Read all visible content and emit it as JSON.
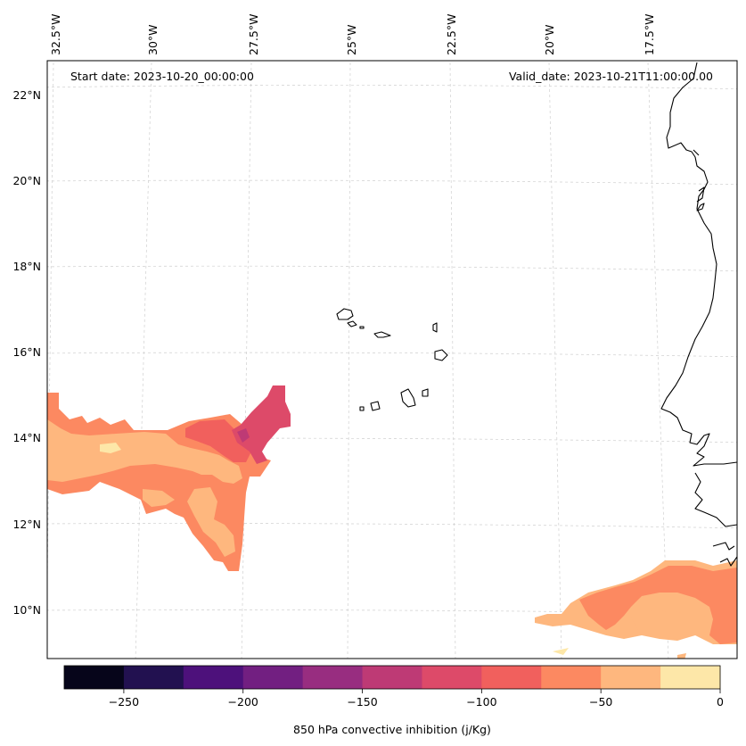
{
  "map": {
    "start_label": "Start date: 2023-10-20_00:00:00",
    "valid_label": "Valid_date: 2023-10-21T11:00:00.00",
    "lon_labels": [
      "32.5°W",
      "30°W",
      "27.5°W",
      "25°W",
      "22.5°W",
      "20°W",
      "17.5°W"
    ],
    "lat_labels": [
      "22°N",
      "20°N",
      "18°N",
      "16°N",
      "14°N",
      "12°N",
      "10°N"
    ]
  },
  "colorbar": {
    "label": "850 hPa convective inhibition (j/Kg)",
    "ticks": [
      "−250",
      "−200",
      "−150",
      "−100",
      "−50",
      "0"
    ],
    "bounds": [
      -275,
      0
    ],
    "colors": [
      "#06051a",
      "#221150",
      "#4d117b",
      "#721f81",
      "#982d80",
      "#be3a75",
      "#dd4a69",
      "#f1605d",
      "#fc8961",
      "#feb77e",
      "#fde7a8"
    ]
  },
  "chart_data": {
    "type": "filled-contour-map",
    "variable": "850 hPa convective inhibition",
    "units": "j/Kg",
    "levels": [
      -275,
      -250,
      -225,
      -200,
      -175,
      -150,
      -125,
      -100,
      -75,
      -50,
      -25,
      0
    ],
    "lon_range": [
      -33,
      -15.5
    ],
    "lat_range": [
      9,
      22.8
    ],
    "regions": [
      {
        "name": "western shaded area",
        "lon": [
          -33,
          -27
        ],
        "lat": [
          11,
          15.2
        ],
        "min_value": -140
      },
      {
        "name": "south-eastern shaded area",
        "lon": [
          -19.5,
          -15.5
        ],
        "lat": [
          9,
          11.3
        ],
        "min_value": -100
      }
    ]
  }
}
